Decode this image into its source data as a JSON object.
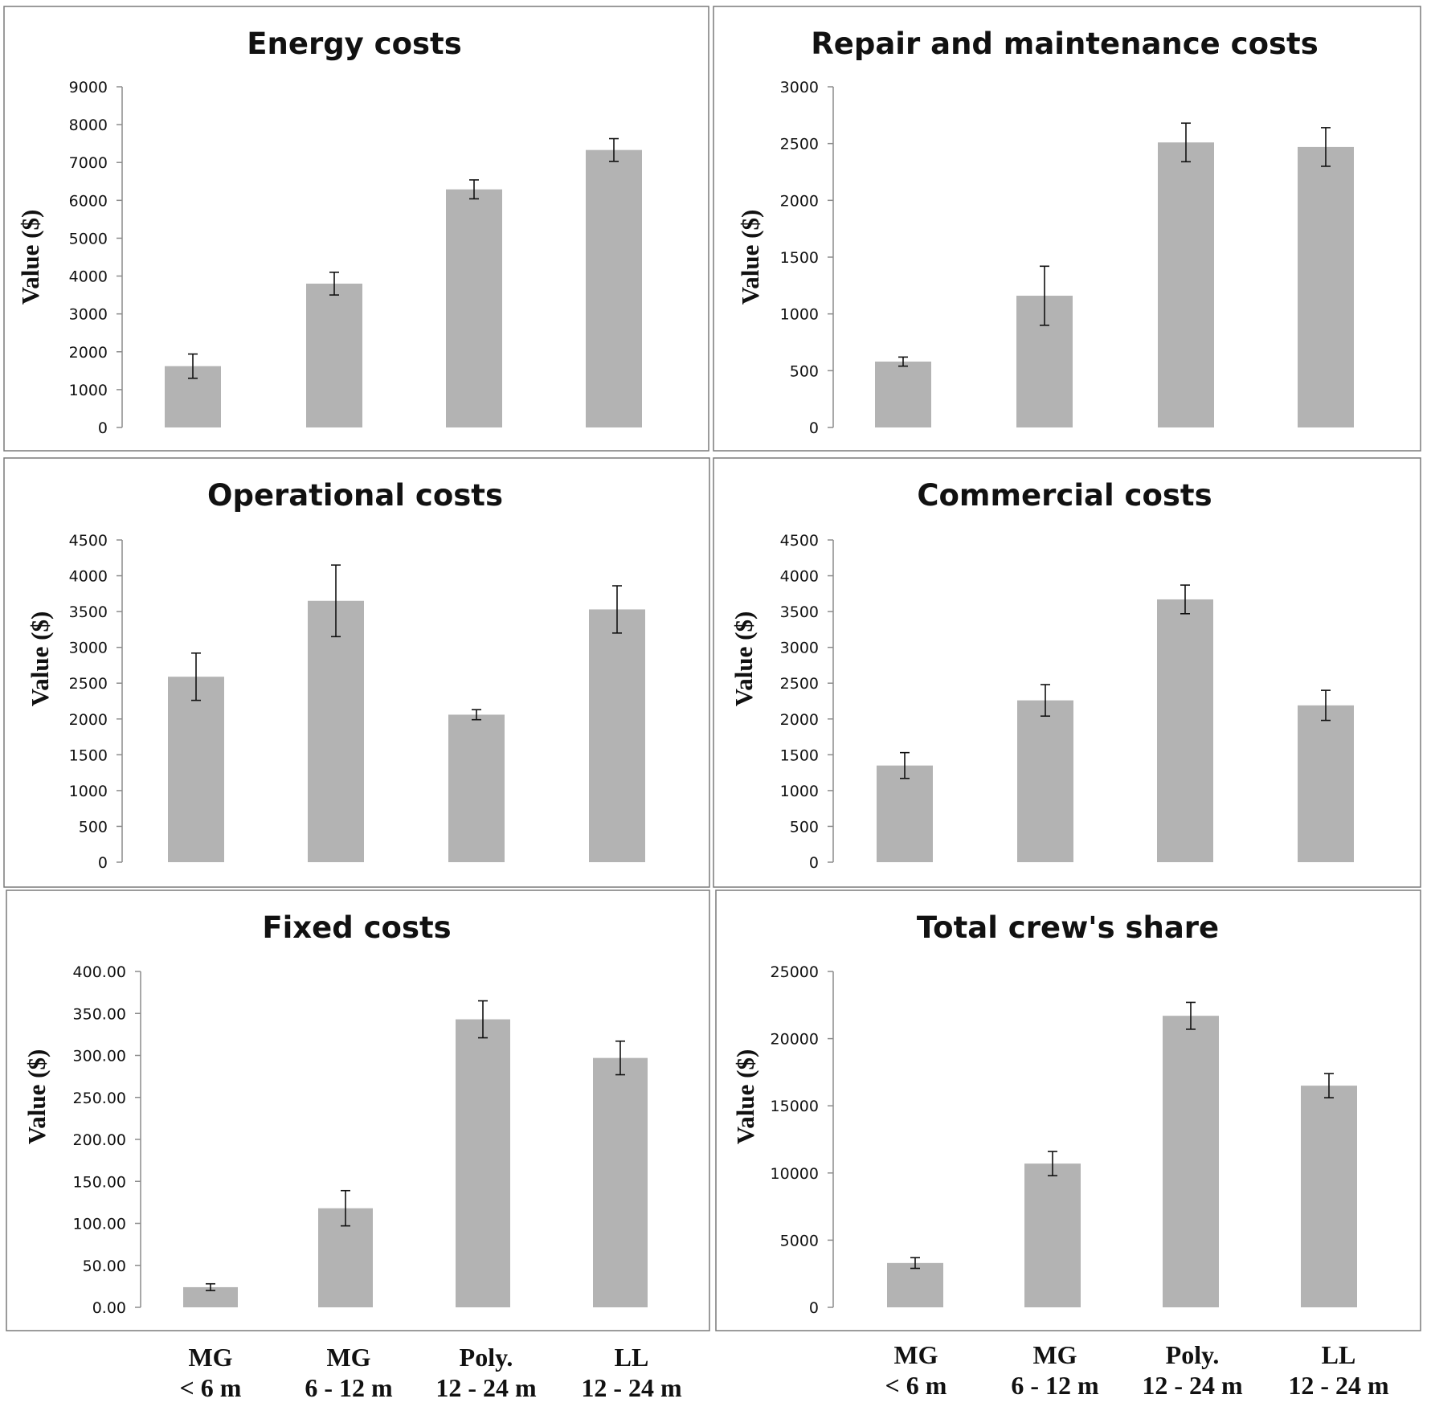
{
  "chart_data": [
    {
      "type": "bar",
      "title": "Energy costs",
      "ylabel": "Value ($)",
      "ylim": [
        0,
        9000
      ],
      "yticks": [
        "0",
        "1000",
        "2000",
        "3000",
        "4000",
        "5000",
        "6000",
        "7000",
        "8000",
        "9000"
      ],
      "categories": [
        "MG < 6 m",
        "MG 6 - 12 m",
        "Poly. 12 - 24 m",
        "LL 12 - 24 m"
      ],
      "values": [
        1620,
        3800,
        6290,
        7330
      ],
      "errors": [
        320,
        300,
        250,
        300
      ]
    },
    {
      "type": "bar",
      "title": "Repair and maintenance costs",
      "ylabel": "Value ($)",
      "ylim": [
        0,
        3000
      ],
      "yticks": [
        "0",
        "500",
        "1000",
        "1500",
        "2000",
        "2500",
        "3000"
      ],
      "categories": [
        "MG < 6 m",
        "MG 6 - 12 m",
        "Poly. 12 - 24 m",
        "LL 12 - 24 m"
      ],
      "values": [
        580,
        1160,
        2510,
        2470
      ],
      "errors": [
        40,
        260,
        170,
        170
      ]
    },
    {
      "type": "bar",
      "title": "Operational costs",
      "ylabel": "Value ($)",
      "ylim": [
        0,
        4500
      ],
      "yticks": [
        "0",
        "500",
        "1000",
        "1500",
        "2000",
        "2500",
        "3000",
        "3500",
        "4000",
        "4500"
      ],
      "categories": [
        "MG < 6 m",
        "MG 6 - 12 m",
        "Poly. 12 - 24 m",
        "LL 12 - 24 m"
      ],
      "values": [
        2590,
        3650,
        2060,
        3530
      ],
      "errors": [
        330,
        500,
        70,
        330
      ]
    },
    {
      "type": "bar",
      "title": "Commercial costs",
      "ylabel": "Value ($)",
      "ylim": [
        0,
        4500
      ],
      "yticks": [
        "0",
        "500",
        "1000",
        "1500",
        "2000",
        "2500",
        "3000",
        "3500",
        "4000",
        "4500"
      ],
      "categories": [
        "MG < 6 m",
        "MG 6 - 12 m",
        "Poly. 12 - 24 m",
        "LL 12 - 24 m"
      ],
      "values": [
        1350,
        2260,
        3670,
        2190
      ],
      "errors": [
        180,
        220,
        200,
        210
      ]
    },
    {
      "type": "bar",
      "title": "Fixed costs",
      "ylabel": "Value ($)",
      "ylim": [
        0,
        400
      ],
      "yticks": [
        "0.00",
        "50.00",
        "100.00",
        "150.00",
        "200.00",
        "250.00",
        "300.00",
        "350.00",
        "400.00"
      ],
      "categories": [
        "MG < 6 m",
        "MG 6 - 12 m",
        "Poly. 12 - 24 m",
        "LL 12 - 24 m"
      ],
      "values": [
        24,
        118,
        343,
        297
      ],
      "errors": [
        4,
        21,
        22,
        20
      ]
    },
    {
      "type": "bar",
      "title": "Total crew's share",
      "ylabel": "Value ($)",
      "ylim": [
        0,
        25000
      ],
      "yticks": [
        "0",
        "5000",
        "10000",
        "15000",
        "20000",
        "25000"
      ],
      "categories": [
        "MG < 6 m",
        "MG 6 - 12 m",
        "Poly. 12 - 24 m",
        "LL 12 - 24 m"
      ],
      "values": [
        3300,
        10700,
        21700,
        16500
      ],
      "errors": [
        400,
        900,
        1000,
        900
      ]
    }
  ],
  "x_axis_labels": {
    "left": [
      {
        "line1": "MG",
        "line2": "< 6 m"
      },
      {
        "line1": "MG",
        "line2": "6 - 12 m"
      },
      {
        "line1": "Poly.",
        "line2": "12 - 24 m"
      },
      {
        "line1": "LL",
        "line2": "12 - 24 m"
      }
    ],
    "right": [
      {
        "line1": "MG",
        "line2": "< 6 m"
      },
      {
        "line1": "MG",
        "line2": "6 - 12 m"
      },
      {
        "line1": "Poly.",
        "line2": "12 - 24 m"
      },
      {
        "line1": "LL",
        "line2": "12 - 24 m"
      }
    ]
  },
  "colors": {
    "bar": "#b3b3b3",
    "error": "#111111",
    "axis": "#8c8c8c",
    "frame": "#7a7a7a"
  }
}
